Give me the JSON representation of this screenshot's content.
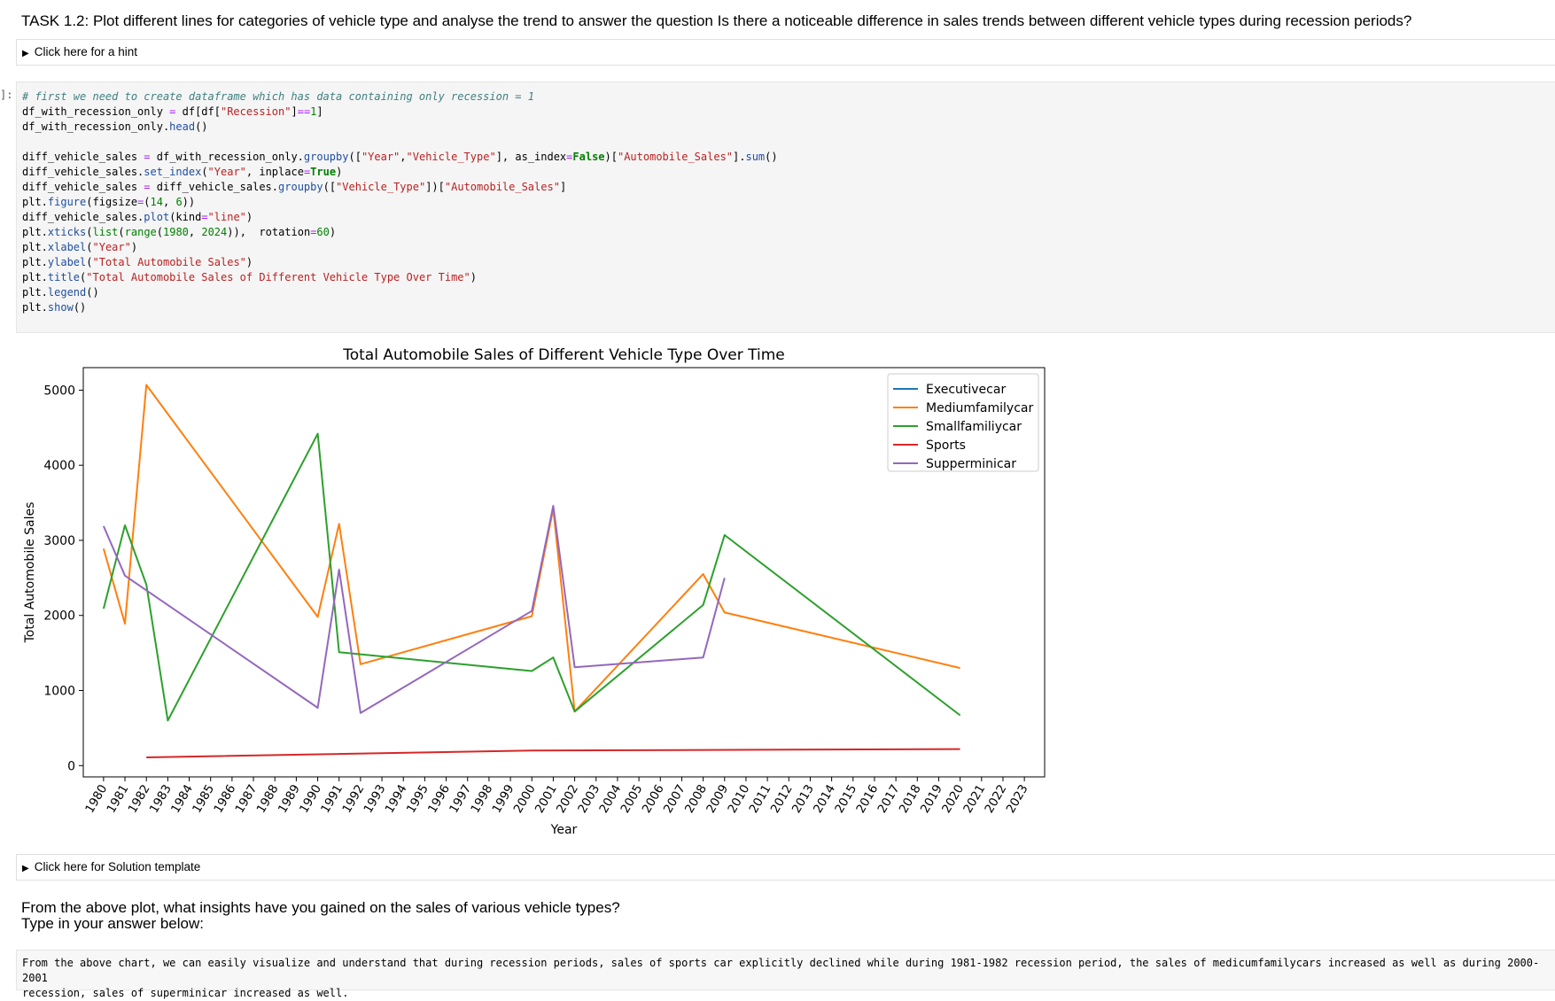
{
  "task_title": "TASK 1.2: Plot different lines for categories of vehicle type and analyse the trend to answer the question Is there a noticeable difference in sales trends between different vehicle types during recession periods?",
  "hint_label": "Click here for a hint",
  "cell_prompt": "]:",
  "code_lines": [
    "# first we need to create dataframe which has data containing only recession = 1",
    "df_with_recession_only = df[df[\"Recession\"]==1]",
    "df_with_recession_only.head()",
    "",
    "diff_vehicle_sales = df_with_recession_only.groupby([\"Year\",\"Vehicle_Type\"], as_index=False)[\"Automobile_Sales\"].sum()",
    "diff_vehicle_sales.set_index(\"Year\", inplace=True)",
    "diff_vehicle_sales = diff_vehicle_sales.groupby([\"Vehicle_Type\"])[\"Automobile_Sales\"]",
    "plt.figure(figsize=(14, 6))",
    "diff_vehicle_sales.plot(kind=\"line\")",
    "plt.xticks(list(range(1980, 2024)),  rotation=60)",
    "plt.xlabel(\"Year\")",
    "plt.ylabel(\"Total Automobile Sales\")",
    "plt.title(\"Total Automobile Sales of Different Vehicle Type Over Time\")",
    "plt.legend()",
    "plt.show()"
  ],
  "solution_label": "Click here for Solution template",
  "question_line1": "From the above plot, what insights have you gained on the sales of various vehicle types?",
  "question_line2": "Type in your answer below:",
  "answer_line1": "From the above chart, we can easily visualize and understand that during recession periods, sales of sports car explicitly declined while during 1981-1982 recession period, the sales of medicumfamilycars increased as well as during 2000-2001",
  "answer_line2": "recession, sales of superminicar increased as well.",
  "chart_data": {
    "type": "line",
    "title": "Total Automobile Sales of Different Vehicle Type Over Time",
    "xlabel": "Year",
    "ylabel": "Total Automobile Sales",
    "xticks": [
      1980,
      1981,
      1982,
      1983,
      1984,
      1985,
      1986,
      1987,
      1988,
      1989,
      1990,
      1991,
      1992,
      1993,
      1994,
      1995,
      1996,
      1997,
      1998,
      1999,
      2000,
      2001,
      2002,
      2003,
      2004,
      2005,
      2006,
      2007,
      2008,
      2009,
      2010,
      2011,
      2012,
      2013,
      2014,
      2015,
      2016,
      2017,
      2018,
      2019,
      2020,
      2021,
      2022,
      2023
    ],
    "xlim": [
      1980,
      2023
    ],
    "yticks": [
      0,
      1000,
      2000,
      3000,
      4000,
      5000
    ],
    "ylim": [
      -150,
      5300
    ],
    "grid": false,
    "legend_position": "top-right",
    "series": [
      {
        "name": "Executivecar",
        "color": "#1f77b4",
        "x": [],
        "y": []
      },
      {
        "name": "Mediumfamilycar",
        "color": "#ff7f0e",
        "x": [
          1980,
          1981,
          1982,
          1990,
          1991,
          1992,
          2000,
          2001,
          2002,
          2008,
          2009,
          2020
        ],
        "y": [
          2890,
          1890,
          5070,
          1980,
          3220,
          1350,
          1990,
          3420,
          720,
          2550,
          2040,
          1300
        ]
      },
      {
        "name": "Smallfamiliycar",
        "color": "#2ca02c",
        "x": [
          1980,
          1981,
          1982,
          1983,
          1990,
          1991,
          2000,
          2001,
          2002,
          2008,
          2009,
          2020
        ],
        "y": [
          2090,
          3200,
          2410,
          600,
          4420,
          1510,
          1260,
          1440,
          720,
          2140,
          3070,
          670
        ]
      },
      {
        "name": "Sports",
        "color": "#d62728",
        "x": [
          1982,
          2000,
          2020
        ],
        "y": [
          110,
          200,
          220
        ]
      },
      {
        "name": "Supperminicar",
        "color": "#9467bd",
        "x": [
          1980,
          1981,
          1990,
          1991,
          1992,
          2000,
          2001,
          2002,
          2008,
          2009
        ],
        "y": [
          3190,
          2530,
          770,
          2610,
          700,
          2060,
          3460,
          1310,
          1440,
          2500
        ]
      }
    ]
  }
}
